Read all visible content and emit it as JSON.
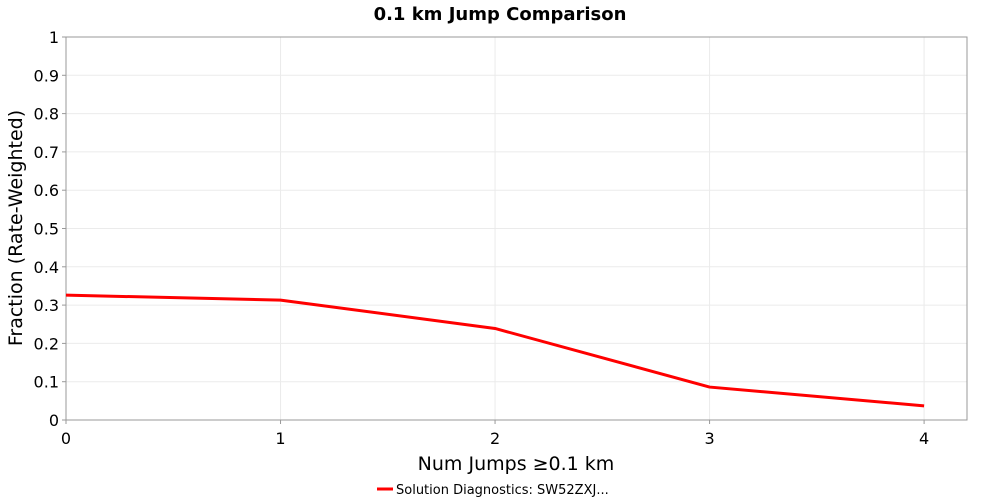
{
  "chart_data": {
    "type": "line",
    "title": "0.1 km Jump Comparison",
    "xlabel": "Num Jumps ≥0.1 km",
    "ylabel": "Fraction (Rate-Weighted)",
    "xlim": [
      0,
      4.2
    ],
    "ylim": [
      0,
      1
    ],
    "xticks": [
      "0",
      "1",
      "2",
      "3",
      "4"
    ],
    "yticks": [
      "0",
      "0.1",
      "0.2",
      "0.3",
      "0.4",
      "0.5",
      "0.6",
      "0.7",
      "0.8",
      "0.9",
      "1"
    ],
    "grid": true,
    "legend_position": "bottom-center",
    "series": [
      {
        "name": "Solution Diagnostics: SW52ZXJ...",
        "color": "#ff0000",
        "x": [
          0,
          1,
          2,
          3,
          4
        ],
        "y": [
          0.326,
          0.313,
          0.239,
          0.086,
          0.037
        ]
      }
    ]
  }
}
